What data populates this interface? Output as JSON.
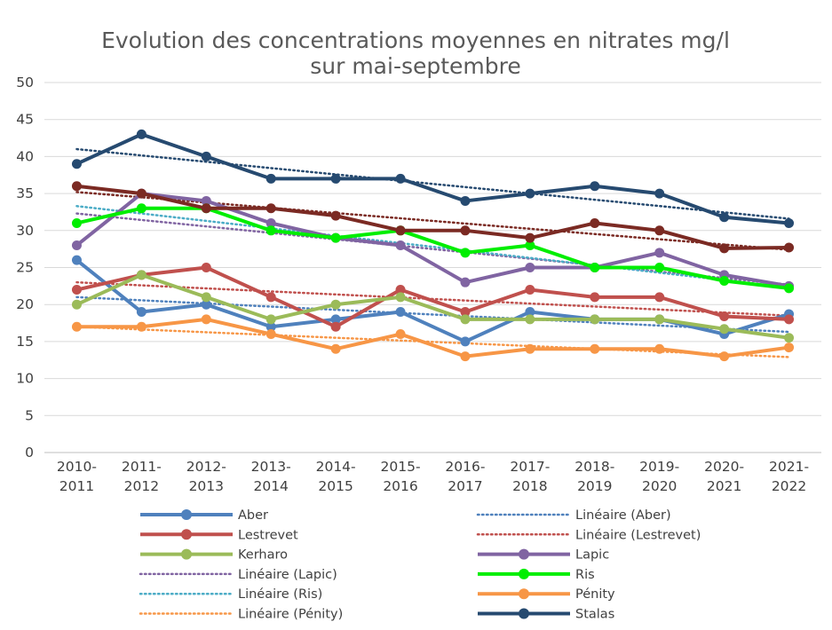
{
  "chart_data": {
    "type": "line",
    "title_line1": "Evolution des concentrations moyennes en nitrates mg/l",
    "title_line2": "sur mai-septembre",
    "xlabel": "",
    "ylabel": "",
    "ylim": [
      0,
      50
    ],
    "ytick_step": 5,
    "grid": true,
    "legend_position": "bottom",
    "categories": [
      [
        "2010-",
        "2011"
      ],
      [
        "2011-",
        "2012"
      ],
      [
        "2012-",
        "2013"
      ],
      [
        "2013-",
        "2014"
      ],
      [
        "2014-",
        "2015"
      ],
      [
        "2015-",
        "2016"
      ],
      [
        "2016-",
        "2017"
      ],
      [
        "2017-",
        "2018"
      ],
      [
        "2018-",
        "2019"
      ],
      [
        "2019-",
        "2020"
      ],
      [
        "2020-",
        "2021"
      ],
      [
        "2021-",
        "2022"
      ]
    ],
    "series": [
      {
        "name": "Aber",
        "color": "#4f81bd",
        "values": [
          26,
          19,
          20,
          17,
          18,
          19,
          15,
          19,
          18,
          18,
          16,
          18.7
        ]
      },
      {
        "name": "Lestrevet",
        "color": "#c0504d",
        "values": [
          22,
          24,
          25,
          21,
          17,
          22,
          19,
          22,
          21,
          21,
          18.4,
          18
        ]
      },
      {
        "name": "Kerharo",
        "color": "#9bbb59",
        "values": [
          20,
          24,
          21,
          18,
          20,
          21,
          18,
          18,
          18,
          18,
          16.7,
          15.5
        ]
      },
      {
        "name": "Lapic",
        "color": "#8064a2",
        "values": [
          28,
          35,
          34,
          31,
          29,
          28,
          23,
          25,
          25,
          27,
          24,
          22.5
        ]
      },
      {
        "name": "Ris",
        "color": "#00ee00",
        "values": [
          31,
          33,
          33,
          30,
          29,
          30,
          27,
          28,
          25,
          25,
          23.2,
          22.2
        ]
      },
      {
        "name": "Pénity",
        "color": "#f79646",
        "values": [
          17,
          17,
          18,
          16,
          14,
          16,
          13,
          14,
          14,
          14,
          13,
          14.2
        ]
      },
      {
        "name": "Stalas",
        "color": "#264a70",
        "values": [
          39,
          43,
          40,
          37,
          37,
          37,
          34,
          35,
          36,
          35,
          31.8,
          31
        ]
      },
      {
        "name": "",
        "color": "#7b2a23",
        "values": [
          36,
          35,
          33,
          33,
          32,
          30,
          30,
          29,
          31,
          30,
          27.6,
          27.7
        ]
      }
    ],
    "trendlines": [
      {
        "name": "Linéaire (Aber)",
        "color": "#4f81bd",
        "start": 21,
        "end": 16.3
      },
      {
        "name": "Linéaire (Lestrevet)",
        "color": "#c0504d",
        "start": 23,
        "end": 18.5
      },
      {
        "name": "Linéaire (Lapic)",
        "color": "#8064a2",
        "start": 32.3,
        "end": 22.7
      },
      {
        "name": "Linéaire (Ris)",
        "color": "#4bacc6",
        "start": 33.3,
        "end": 22.3
      },
      {
        "name": "Linéaire (Pénity)",
        "color": "#f79646",
        "start": 17,
        "end": 12.9
      },
      {
        "name": "",
        "color": "#264a70",
        "start": 41,
        "end": 31.6
      },
      {
        "name": "",
        "color": "#7b2a23",
        "start": 35.2,
        "end": 27.4
      }
    ],
    "legend": [
      {
        "label": "Aber",
        "kind": "series",
        "color": "#4f81bd"
      },
      {
        "label": "Linéaire (Aber)",
        "kind": "trend",
        "color": "#4f81bd"
      },
      {
        "label": "Lestrevet",
        "kind": "series",
        "color": "#c0504d"
      },
      {
        "label": "Linéaire (Lestrevet)",
        "kind": "trend",
        "color": "#c0504d"
      },
      {
        "label": "Kerharo",
        "kind": "series",
        "color": "#9bbb59"
      },
      {
        "label": "Lapic",
        "kind": "series",
        "color": "#8064a2"
      },
      {
        "label": "Linéaire (Lapic)",
        "kind": "trend",
        "color": "#8064a2"
      },
      {
        "label": "Ris",
        "kind": "series",
        "color": "#00ee00"
      },
      {
        "label": "Linéaire (Ris)",
        "kind": "trend",
        "color": "#4bacc6"
      },
      {
        "label": "Pénity",
        "kind": "series",
        "color": "#f79646"
      },
      {
        "label": "Linéaire (Pénity)",
        "kind": "trend",
        "color": "#f79646"
      },
      {
        "label": "Stalas",
        "kind": "series",
        "color": "#264a70"
      }
    ]
  }
}
